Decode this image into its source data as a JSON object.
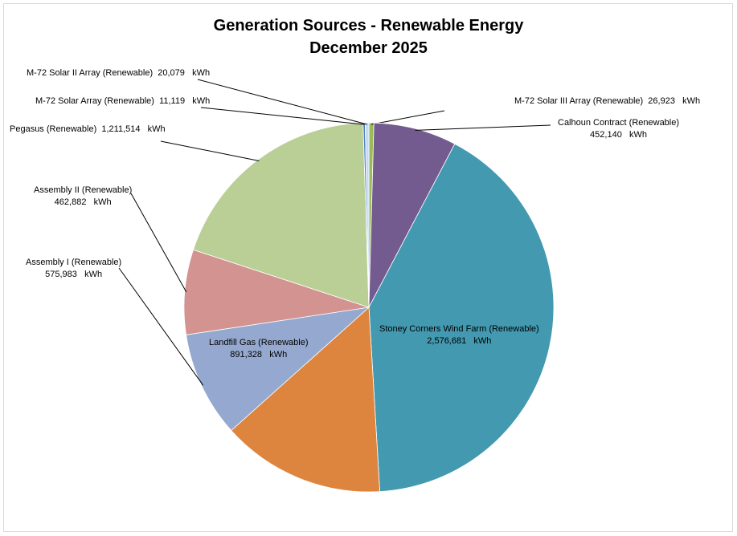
{
  "chart_data": {
    "type": "pie",
    "title": [
      "Generation Sources - Renewable Energy",
      "December 2025"
    ],
    "unit": "kWh",
    "legend": "none",
    "slices": [
      {
        "label": "M-72 Solar III Array (Renewable)",
        "value": 26923,
        "value_text": "26,923",
        "color": "#9bbb59"
      },
      {
        "label": "Calhoun Contract (Renewable)",
        "value": 452140,
        "value_text": "452,140",
        "color": "#735a8f"
      },
      {
        "label": "Stoney Corners Wind Farm (Renewable)",
        "value": 2576681,
        "value_text": "2,576,681",
        "color": "#4299b0"
      },
      {
        "label": "Landfill Gas (Renewable)",
        "value": 891328,
        "value_text": "891,328",
        "color": "#dd853e"
      },
      {
        "label": "Assembly I (Renewable)",
        "value": 575983,
        "value_text": "575,983",
        "color": "#95a9d0"
      },
      {
        "label": "Assembly II (Renewable)",
        "value": 462882,
        "value_text": "462,882",
        "color": "#d39391"
      },
      {
        "label": "Pegasus (Renewable)",
        "value": 1211514,
        "value_text": "1,211,514",
        "color": "#bacf96"
      },
      {
        "label": "M-72 Solar Array (Renewable)",
        "value": 11119,
        "value_text": "11,119",
        "color": "#4f81bd"
      },
      {
        "label": "M-72 Solar II Array (Renewable)",
        "value": 20079,
        "value_text": "20,079",
        "color": "#c6d9f1"
      }
    ]
  }
}
